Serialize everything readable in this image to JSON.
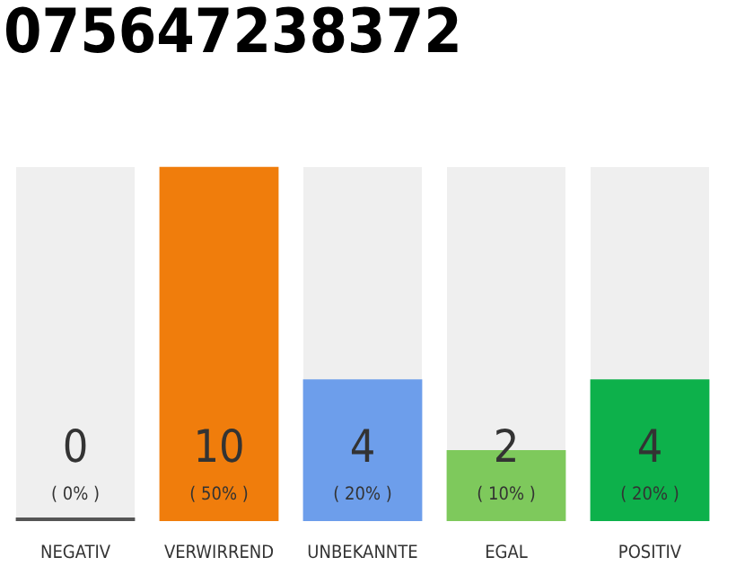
{
  "chart_data": {
    "type": "bar",
    "title": "075647238372",
    "categories": [
      "NEGATIV",
      "VERWIRREND",
      "UNBEKANNTE",
      "EGAL",
      "POSITIV"
    ],
    "values": [
      0,
      10,
      4,
      2,
      4
    ],
    "colors": [
      "#555555",
      "#f07d0c",
      "#6d9eeb",
      "#7ec95c",
      "#0db14b"
    ],
    "value_labels": [
      "0\n( 0% )",
      "10\n( 50% )",
      "4\n( 20% )",
      "2\n( 10% )",
      "4\n( 20% )"
    ],
    "tick_labels": "x",
    "grid": false,
    "legend": false
  }
}
